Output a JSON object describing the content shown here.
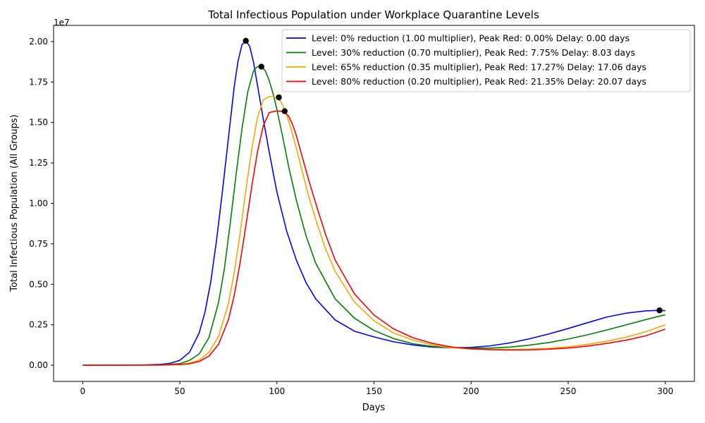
{
  "chart_data": {
    "type": "line",
    "title": "Total Infectious Population under Workplace Quarantine Levels",
    "xlabel": "Days",
    "ylabel": "Total Infectious Population (All Groups)",
    "y_offset_label": "1e7",
    "xlim": [
      -15,
      315
    ],
    "ylim": [
      -1000000,
      21000000
    ],
    "x_ticks": [
      0,
      50,
      100,
      150,
      200,
      250,
      300
    ],
    "y_ticks": [
      0,
      2500000,
      5000000,
      7500000,
      10000000,
      12500000,
      15000000,
      17500000,
      20000000
    ],
    "y_tick_labels": [
      "0.00",
      "0.25",
      "0.50",
      "0.75",
      "1.00",
      "1.25",
      "1.50",
      "1.75",
      "2.00"
    ],
    "legend_position": "upper-right",
    "series": [
      {
        "name": "Level: 0% reduction (1.00 multiplier), Peak Red: 0.00% Delay: 0.00 days",
        "color": "#0000ff",
        "x": [
          0,
          30,
          40,
          45,
          50,
          55,
          60,
          63,
          66,
          69,
          72,
          75,
          78,
          80,
          82,
          84,
          86,
          88,
          90,
          93,
          96,
          100,
          105,
          110,
          115,
          120,
          130,
          140,
          150,
          160,
          170,
          180,
          190,
          200,
          210,
          220,
          230,
          240,
          250,
          260,
          270,
          280,
          290,
          297,
          300
        ],
        "y": [
          0,
          10000,
          50000,
          120000,
          300000,
          800000,
          2000000,
          3300000,
          5200000,
          7800000,
          10800000,
          14000000,
          17200000,
          18800000,
          19800000,
          20050000,
          19700000,
          18700000,
          17300000,
          15200000,
          13200000,
          10700000,
          8300000,
          6500000,
          5100000,
          4100000,
          2800000,
          2100000,
          1750000,
          1450000,
          1250000,
          1120000,
          1080000,
          1100000,
          1200000,
          1380000,
          1630000,
          1930000,
          2270000,
          2630000,
          2980000,
          3220000,
          3360000,
          3390000,
          3370000
        ]
      },
      {
        "name": "Level: 30% reduction (0.70 multiplier), Peak Red: 7.75% Delay: 8.03 days",
        "color": "#008000",
        "x": [
          0,
          40,
          50,
          55,
          60,
          65,
          70,
          73,
          76,
          79,
          82,
          85,
          88,
          90,
          92,
          94,
          96,
          98,
          100,
          103,
          106,
          110,
          115,
          120,
          130,
          140,
          150,
          160,
          170,
          180,
          190,
          200,
          210,
          220,
          230,
          240,
          250,
          260,
          270,
          280,
          290,
          300
        ],
        "y": [
          0,
          20000,
          100000,
          300000,
          700000,
          1700000,
          3900000,
          6000000,
          8800000,
          11800000,
          14600000,
          16900000,
          18200000,
          18450000,
          18450000,
          18200000,
          17600000,
          16800000,
          15800000,
          14100000,
          12300000,
          10200000,
          8000000,
          6300000,
          4100000,
          2900000,
          2150000,
          1650000,
          1330000,
          1160000,
          1080000,
          1050000,
          1060000,
          1120000,
          1240000,
          1400000,
          1620000,
          1880000,
          2180000,
          2500000,
          2820000,
          3120000
        ]
      },
      {
        "name": "Level: 65% reduction (0.35 multiplier), Peak Red: 17.27% Delay: 17.06 days",
        "color": "#ffa500",
        "x": [
          0,
          40,
          50,
          55,
          60,
          65,
          70,
          75,
          78,
          81,
          84,
          87,
          90,
          93,
          96,
          98,
          100,
          102,
          104,
          106,
          108,
          110,
          113,
          116,
          120,
          125,
          130,
          140,
          150,
          160,
          170,
          180,
          190,
          200,
          210,
          220,
          230,
          240,
          250,
          260,
          270,
          280,
          290,
          300
        ],
        "y": [
          0,
          10000,
          50000,
          130000,
          320000,
          800000,
          1800000,
          3800000,
          5700000,
          8100000,
          10800000,
          13300000,
          15300000,
          16400000,
          16600000,
          16600000,
          16550000,
          16300000,
          15800000,
          15100000,
          14300000,
          13400000,
          12000000,
          10600000,
          9000000,
          7200000,
          5800000,
          3900000,
          2750000,
          2000000,
          1550000,
          1250000,
          1080000,
          1000000,
          980000,
          970000,
          990000,
          1040000,
          1140000,
          1290000,
          1490000,
          1740000,
          2070000,
          2500000
        ]
      },
      {
        "name": "Level: 80% reduction (0.20 multiplier), Peak Red: 21.35% Delay: 20.07 days",
        "color": "#ff0000",
        "x": [
          0,
          40,
          50,
          55,
          60,
          65,
          70,
          75,
          78,
          81,
          84,
          87,
          90,
          93,
          96,
          99,
          102,
          104,
          106,
          108,
          110,
          113,
          116,
          120,
          125,
          130,
          140,
          150,
          160,
          170,
          180,
          190,
          200,
          210,
          220,
          230,
          240,
          250,
          260,
          270,
          280,
          290,
          300
        ],
        "y": [
          0,
          8000,
          35000,
          90000,
          230000,
          560000,
          1300000,
          2800000,
          4300000,
          6300000,
          8600000,
          11000000,
          13200000,
          14800000,
          15600000,
          15700000,
          15700000,
          15650000,
          15400000,
          14900000,
          14200000,
          12900000,
          11600000,
          10000000,
          8100000,
          6500000,
          4400000,
          3100000,
          2250000,
          1700000,
          1350000,
          1130000,
          1010000,
          960000,
          940000,
          950000,
          990000,
          1060000,
          1180000,
          1350000,
          1550000,
          1820000,
          2230000
        ]
      }
    ],
    "peak_markers": [
      {
        "x": 84,
        "y": 20050000
      },
      {
        "x": 92,
        "y": 18450000
      },
      {
        "x": 101,
        "y": 16550000
      },
      {
        "x": 104,
        "y": 15700000
      },
      {
        "x": 297,
        "y": 3390000
      }
    ],
    "marker_color": "#000000"
  }
}
